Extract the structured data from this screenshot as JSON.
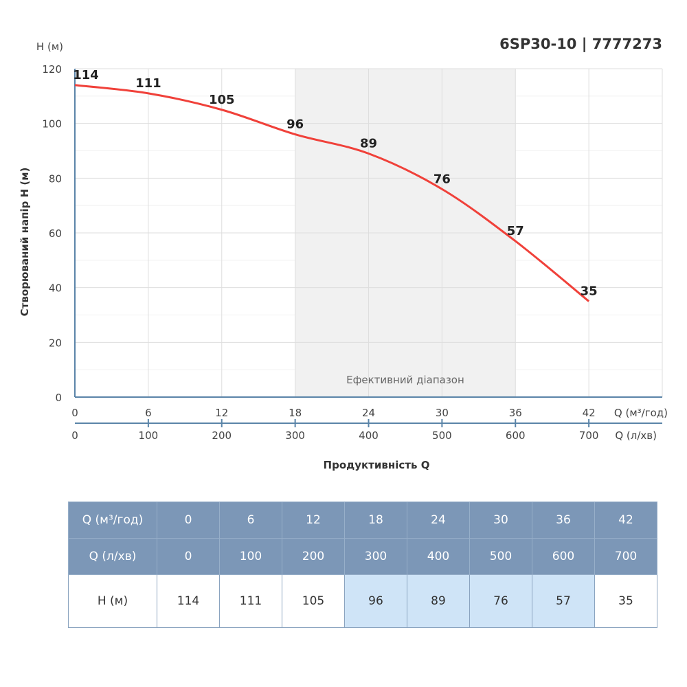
{
  "title": "6SP30-10 | 7777273",
  "chart_data": {
    "type": "line",
    "title": "6SP30-10 | 7777273",
    "ylabel": "Створюваний напір H (м)",
    "yunit": "H (м)",
    "xlabel": "Продуктивність Q",
    "x_unit_primary": "Q (м³/год)",
    "x_unit_secondary": "Q (л/хв)",
    "x": [
      0,
      6,
      12,
      18,
      24,
      30,
      36,
      42
    ],
    "x_secondary": [
      0,
      100,
      200,
      300,
      400,
      500,
      600,
      700
    ],
    "series": [
      {
        "values": [
          114,
          111,
          105,
          96,
          89,
          76,
          57,
          35
        ],
        "color": "#f0413a"
      }
    ],
    "xlim": [
      0,
      48
    ],
    "ylim": [
      0,
      120
    ],
    "yticks": [
      0,
      20,
      40,
      60,
      80,
      100,
      120
    ],
    "grid": true,
    "efficient_range": {
      "label": "Ефективний діапазон",
      "from": 18,
      "to": 36
    }
  },
  "table": {
    "rows": [
      {
        "label": "Q (м³/год)",
        "values": [
          "0",
          "6",
          "12",
          "18",
          "24",
          "30",
          "36",
          "42"
        ]
      },
      {
        "label": "Q (л/хв)",
        "values": [
          "0",
          "100",
          "200",
          "300",
          "400",
          "500",
          "600",
          "700"
        ]
      },
      {
        "label": "H (м)",
        "values": [
          "114",
          "111",
          "105",
          "96",
          "89",
          "76",
          "57",
          "35"
        ]
      }
    ],
    "highlight_color": "#cfe4f7",
    "header_color": "#7c97b7"
  }
}
